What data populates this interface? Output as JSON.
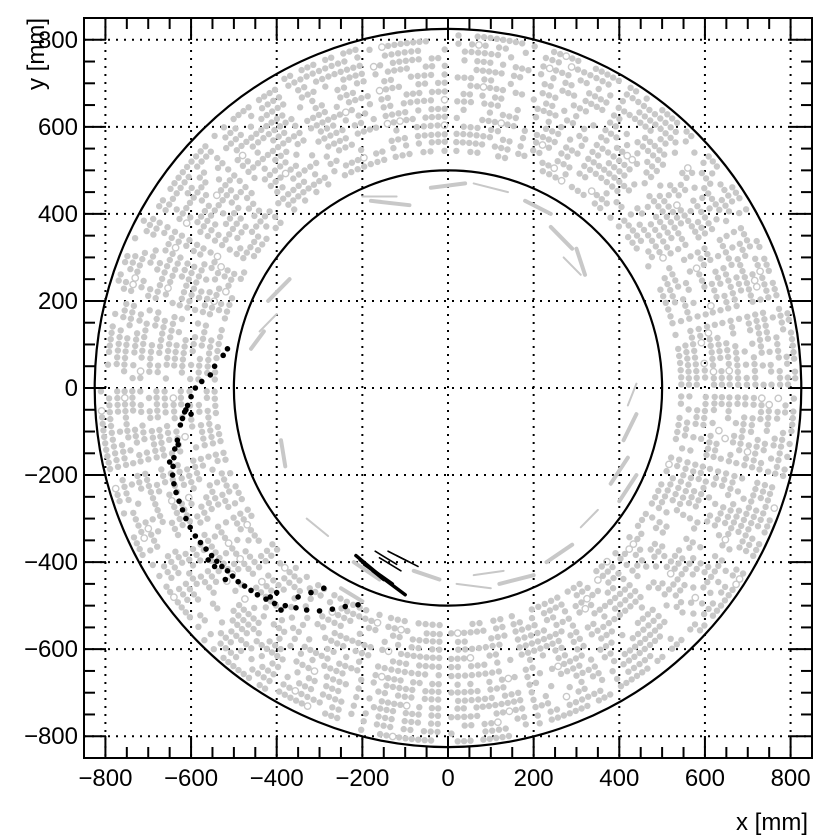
{
  "chart_data": {
    "type": "scatter",
    "title": "",
    "xlabel": "x [mm]",
    "ylabel": "y [mm]",
    "xlim": [
      -850,
      850
    ],
    "ylim": [
      -850,
      850
    ],
    "grid": true,
    "xticks": [
      -800,
      -600,
      -400,
      -200,
      0,
      200,
      400,
      600,
      800
    ],
    "yticks": [
      -800,
      -600,
      -400,
      -200,
      0,
      200,
      400,
      600,
      800
    ],
    "xtick_labels": [
      "−800",
      "−600",
      "−400",
      "−200",
      "0",
      "200",
      "400",
      "600",
      "800"
    ],
    "ytick_labels": [
      "−800",
      "−600",
      "−400",
      "−200",
      "0",
      "200",
      "400",
      "600",
      "800"
    ],
    "colors": {
      "hits": "#c8c8c8",
      "track": "#000000",
      "axes": "#000000"
    },
    "circles": [
      {
        "name": "inner boundary",
        "cx": 0,
        "cy": 0,
        "r": 500
      },
      {
        "name": "outer boundary",
        "cx": 0,
        "cy": 0,
        "r": 825
      }
    ],
    "track_hits": [
      [
        -515,
        90
      ],
      [
        -525,
        75
      ],
      [
        -545,
        50
      ],
      [
        -555,
        30
      ],
      [
        -575,
        15
      ],
      [
        -590,
        0
      ],
      [
        -600,
        -20
      ],
      [
        -608,
        -40
      ],
      [
        -615,
        -55
      ],
      [
        -620,
        -70
      ],
      [
        -625,
        -85
      ],
      [
        -632,
        -120
      ],
      [
        -638,
        -140
      ],
      [
        -640,
        -160
      ],
      [
        -642,
        -180
      ],
      [
        -643,
        -200
      ],
      [
        -640,
        -220
      ],
      [
        -635,
        -240
      ],
      [
        -628,
        -260
      ],
      [
        -620,
        -280
      ],
      [
        -612,
        -300
      ],
      [
        -602,
        -320
      ],
      [
        -590,
        -340
      ],
      [
        -578,
        -355
      ],
      [
        -565,
        -370
      ],
      [
        -552,
        -385
      ],
      [
        -540,
        -398
      ],
      [
        -528,
        -410
      ],
      [
        -515,
        -420
      ],
      [
        -503,
        -432
      ],
      [
        -490,
        -445
      ],
      [
        -475,
        -455
      ],
      [
        -460,
        -465
      ],
      [
        -445,
        -475
      ],
      [
        -425,
        -485
      ],
      [
        -405,
        -495
      ],
      [
        -380,
        -500
      ],
      [
        -355,
        -505
      ],
      [
        -330,
        -510
      ],
      [
        -300,
        -512
      ],
      [
        -270,
        -508
      ],
      [
        -240,
        -502
      ],
      [
        -210,
        -498
      ],
      [
        -400,
        -470
      ],
      [
        -415,
        -480
      ],
      [
        -390,
        -510
      ],
      [
        -350,
        -480
      ],
      [
        -320,
        -470
      ],
      [
        -290,
        -460
      ],
      [
        -600,
        -60
      ],
      [
        -612,
        -50
      ],
      [
        -630,
        -130
      ],
      [
        -650,
        -170
      ],
      [
        -560,
        -395
      ],
      [
        -545,
        -410
      ],
      [
        -520,
        -440
      ]
    ],
    "track_segments": [
      [
        [
          -215,
          -385
        ],
        [
          -160,
          -430
        ]
      ],
      [
        [
          -205,
          -395
        ],
        [
          -150,
          -440
        ]
      ],
      [
        [
          -195,
          -405
        ],
        [
          -130,
          -450
        ]
      ],
      [
        [
          -175,
          -420
        ],
        [
          -100,
          -475
        ]
      ],
      [
        [
          -160,
          -390
        ],
        [
          -110,
          -420
        ]
      ],
      [
        [
          -170,
          -375
        ],
        [
          -120,
          -405
        ]
      ],
      [
        [
          -140,
          -375
        ],
        [
          -90,
          -400
        ]
      ],
      [
        [
          -120,
          -385
        ],
        [
          -70,
          -410
        ]
      ]
    ],
    "inner_gray_segments": [
      [
        [
          -200,
          440
        ],
        [
          -120,
          440
        ]
      ],
      [
        [
          -180,
          430
        ],
        [
          -90,
          420
        ]
      ],
      [
        [
          -40,
          460
        ],
        [
          40,
          470
        ]
      ],
      [
        [
          60,
          470
        ],
        [
          140,
          450
        ]
      ],
      [
        [
          180,
          430
        ],
        [
          240,
          400
        ]
      ],
      [
        [
          240,
          370
        ],
        [
          290,
          320
        ]
      ],
      [
        [
          270,
          300
        ],
        [
          310,
          260
        ]
      ],
      [
        [
          300,
          320
        ],
        [
          320,
          260
        ]
      ],
      [
        [
          -420,
          200
        ],
        [
          -370,
          250
        ]
      ],
      [
        [
          -440,
          130
        ],
        [
          -400,
          170
        ]
      ],
      [
        [
          -460,
          90
        ],
        [
          -430,
          130
        ]
      ],
      [
        [
          -390,
          -120
        ],
        [
          -380,
          -180
        ]
      ],
      [
        [
          -330,
          -300
        ],
        [
          -280,
          -340
        ]
      ],
      [
        [
          -220,
          -400
        ],
        [
          -160,
          -440
        ]
      ],
      [
        [
          -80,
          -420
        ],
        [
          -20,
          -440
        ]
      ],
      [
        [
          20,
          -450
        ],
        [
          100,
          -460
        ]
      ],
      [
        [
          120,
          -450
        ],
        [
          200,
          -430
        ]
      ],
      [
        [
          230,
          -400
        ],
        [
          290,
          -360
        ]
      ],
      [
        [
          310,
          -320
        ],
        [
          350,
          -280
        ]
      ],
      [
        [
          380,
          -220
        ],
        [
          420,
          -160
        ]
      ],
      [
        [
          410,
          -120
        ],
        [
          440,
          -60
        ]
      ],
      [
        [
          420,
          -40
        ],
        [
          440,
          10
        ]
      ],
      [
        [
          400,
          -260
        ],
        [
          440,
          -200
        ]
      ],
      [
        [
          -250,
          -460
        ],
        [
          -200,
          -490
        ]
      ],
      [
        [
          60,
          -430
        ],
        [
          130,
          -420
        ]
      ]
    ]
  }
}
